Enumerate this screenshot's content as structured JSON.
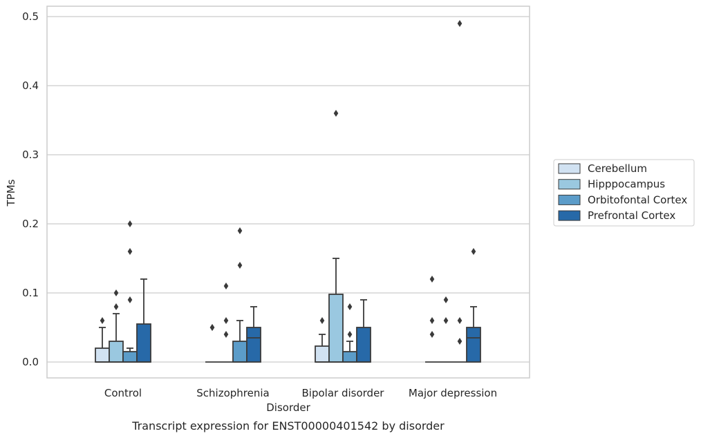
{
  "chart_data": {
    "type": "box",
    "title": "",
    "xlabel": "Disorder",
    "ylabel": "TPMs",
    "caption": "Transcript expression for ENST00000401542 by disorder",
    "ylim": [
      -0.024,
      0.515
    ],
    "yticks": [
      0.0,
      0.1,
      0.2,
      0.3,
      0.4,
      0.5
    ],
    "ytick_labels": [
      "0.0",
      "0.1",
      "0.2",
      "0.3",
      "0.4",
      "0.5"
    ],
    "grid": true,
    "legend_position": "right",
    "categories": [
      "Control",
      "Schizophrenia",
      "Bipolar disorder",
      "Major depression"
    ],
    "series": [
      {
        "name": "Cerebellum",
        "color": "#d1e2f2",
        "boxes": [
          {
            "q1": 0.0,
            "median": 0.0,
            "q3": 0.02,
            "whisker_low": 0.0,
            "whisker_high": 0.05,
            "outliers": [
              0.06
            ]
          },
          {
            "q1": 0.0,
            "median": 0.0,
            "q3": 0.0,
            "whisker_low": 0.0,
            "whisker_high": 0.0,
            "outliers": [
              0.05,
              0.05
            ]
          },
          {
            "q1": 0.0,
            "median": 0.0,
            "q3": 0.023,
            "whisker_low": 0.0,
            "whisker_high": 0.04,
            "outliers": [
              0.06
            ]
          },
          {
            "q1": 0.0,
            "median": 0.0,
            "q3": 0.0,
            "whisker_low": 0.0,
            "whisker_high": 0.0,
            "outliers": [
              0.04,
              0.06,
              0.12
            ]
          }
        ]
      },
      {
        "name": "Hipppocampus",
        "color": "#9ac8e0",
        "boxes": [
          {
            "q1": 0.0,
            "median": 0.0,
            "q3": 0.03,
            "whisker_low": 0.0,
            "whisker_high": 0.07,
            "outliers": [
              0.08,
              0.1
            ]
          },
          {
            "q1": 0.0,
            "median": 0.0,
            "q3": 0.0,
            "whisker_low": 0.0,
            "whisker_high": 0.0,
            "outliers": [
              0.04,
              0.06,
              0.11
            ]
          },
          {
            "q1": 0.0,
            "median": 0.0,
            "q3": 0.098,
            "whisker_low": 0.0,
            "whisker_high": 0.15,
            "outliers": [
              0.36
            ]
          },
          {
            "q1": 0.0,
            "median": 0.0,
            "q3": 0.0,
            "whisker_low": 0.0,
            "whisker_high": 0.0,
            "outliers": [
              0.06,
              0.09
            ]
          }
        ]
      },
      {
        "name": "Orbitofontal Cortex",
        "color": "#5b9cc9",
        "boxes": [
          {
            "q1": 0.0,
            "median": 0.0,
            "q3": 0.015,
            "whisker_low": 0.0,
            "whisker_high": 0.02,
            "outliers": [
              0.09,
              0.16,
              0.2
            ]
          },
          {
            "q1": 0.0,
            "median": 0.0,
            "q3": 0.03,
            "whisker_low": 0.0,
            "whisker_high": 0.06,
            "outliers": [
              0.14,
              0.19
            ]
          },
          {
            "q1": 0.0,
            "median": 0.0,
            "q3": 0.015,
            "whisker_low": 0.0,
            "whisker_high": 0.03,
            "outliers": [
              0.04,
              0.08
            ]
          },
          {
            "q1": 0.0,
            "median": 0.0,
            "q3": 0.0,
            "whisker_low": 0.0,
            "whisker_high": 0.0,
            "outliers": [
              0.03,
              0.06,
              0.49
            ]
          }
        ]
      },
      {
        "name": "Prefrontal Cortex",
        "color": "#2769a8",
        "boxes": [
          {
            "q1": 0.0,
            "median": 0.0,
            "q3": 0.055,
            "whisker_low": 0.0,
            "whisker_high": 0.12,
            "outliers": []
          },
          {
            "q1": 0.0,
            "median": 0.035,
            "q3": 0.05,
            "whisker_low": 0.0,
            "whisker_high": 0.08,
            "outliers": []
          },
          {
            "q1": 0.0,
            "median": 0.0,
            "q3": 0.05,
            "whisker_low": 0.0,
            "whisker_high": 0.09,
            "outliers": []
          },
          {
            "q1": 0.0,
            "median": 0.035,
            "q3": 0.05,
            "whisker_low": 0.0,
            "whisker_high": 0.08,
            "outliers": [
              0.16
            ]
          }
        ]
      }
    ]
  }
}
